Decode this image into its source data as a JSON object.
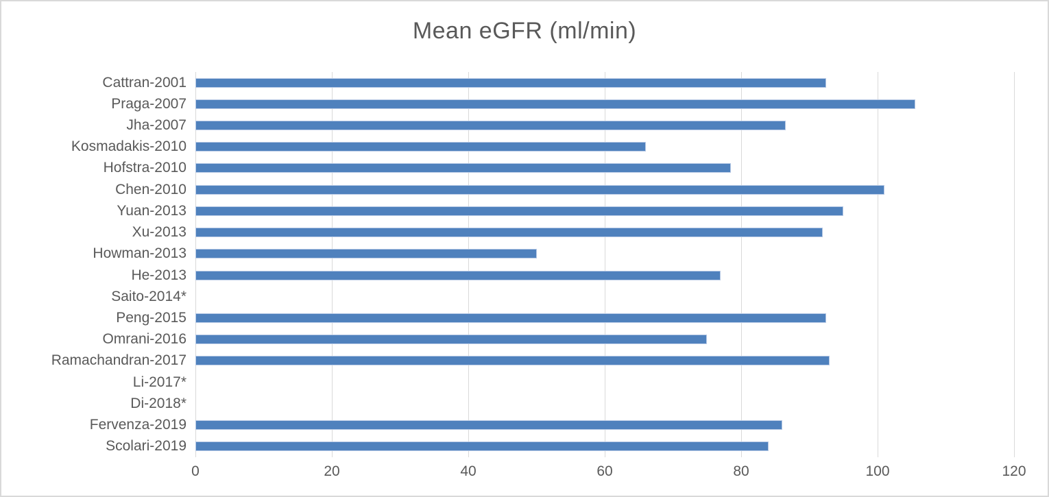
{
  "page": {
    "background_color": "#FFFFFF",
    "frame_border_color": "#D9D9D9"
  },
  "chart_data": {
    "type": "bar",
    "orientation": "horizontal",
    "title": "Mean eGFR (ml/min)",
    "xlabel": "",
    "ylabel": "",
    "categories": [
      "Cattran-2001",
      "Praga-2007",
      "Jha-2007",
      "Kosmadakis-2010",
      "Hofstra-2010",
      "Chen-2010",
      "Yuan-2013",
      "Xu-2013",
      "Howman-2013",
      "He-2013",
      "Saito-2014*",
      "Peng-2015",
      "Omrani-2016",
      "Ramachandran-2017",
      "Li-2017*",
      "Di-2018*",
      "Fervenza-2019",
      "Scolari-2019"
    ],
    "values": [
      92.5,
      105.5,
      86.5,
      66,
      78.5,
      101,
      95,
      92,
      50,
      77,
      null,
      92.5,
      75,
      93,
      null,
      null,
      86,
      84
    ],
    "xlim": [
      0,
      120
    ],
    "xticks": [
      0,
      20,
      40,
      60,
      80,
      100,
      120
    ],
    "grid": "vertical-only",
    "legend": "none",
    "bar_color": "#4F81BD",
    "bar_edge_color": "#B7C9E5",
    "gridline_color": "#D9D9D9",
    "text_color": "#595959"
  }
}
